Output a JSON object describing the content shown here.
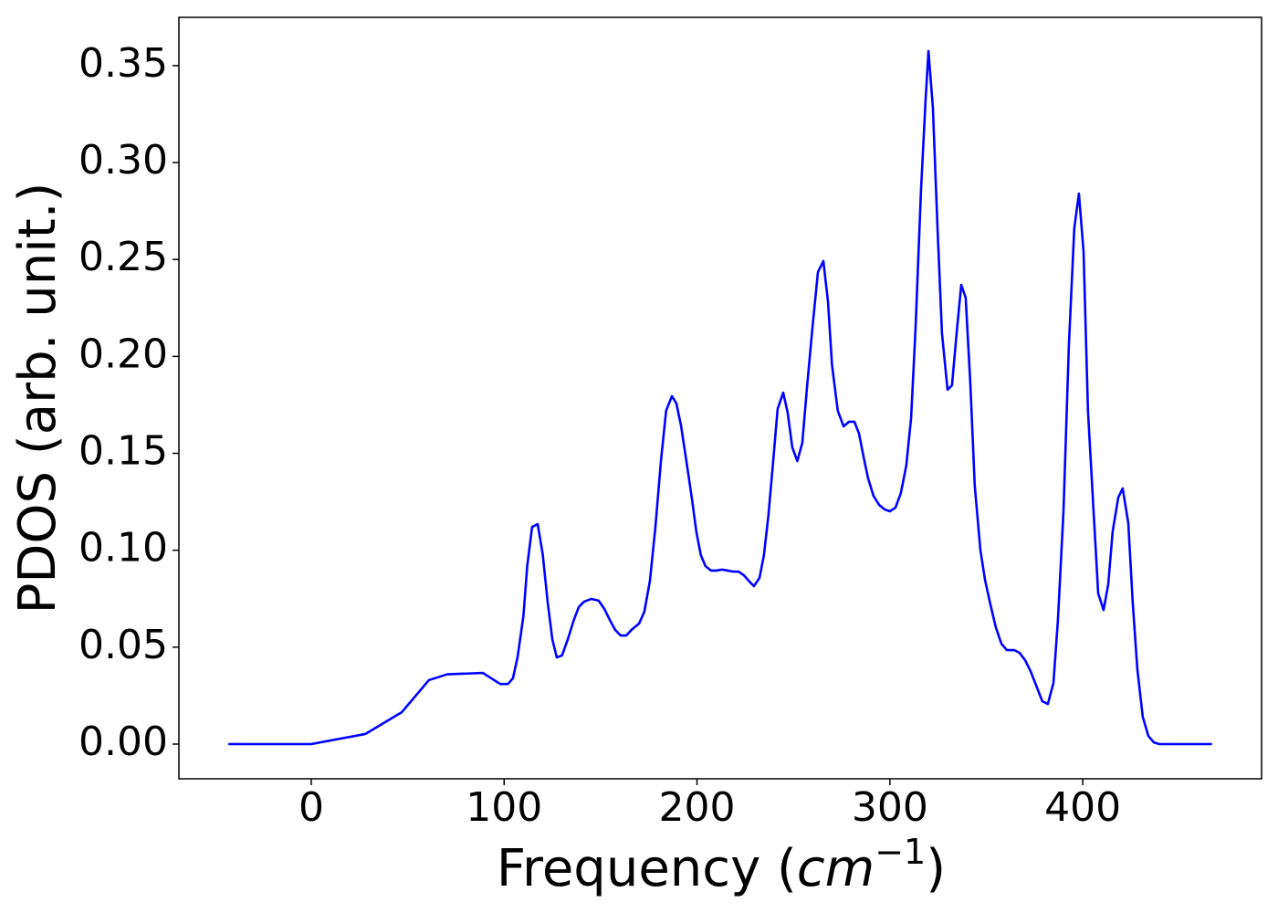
{
  "chart_data": {
    "type": "line",
    "x_label": {
      "text": "Frequency (",
      "unit": "cm",
      "exponent": "−1",
      "close": ")"
    },
    "y_label": "PDOS (arb. unit.)",
    "xlim": [
      -68.6,
      492.7
    ],
    "ylim": [
      -0.0179,
      0.3749
    ],
    "xticks": [
      0,
      100,
      200,
      300,
      400
    ],
    "yticks": [
      {
        "value": 0,
        "label": "0.00"
      },
      {
        "value": 0.05,
        "label": "0.05"
      },
      {
        "value": 0.1,
        "label": "0.10"
      },
      {
        "value": 0.15,
        "label": "0.15"
      },
      {
        "value": 0.2,
        "label": "0.20"
      },
      {
        "value": 0.25,
        "label": "0.25"
      },
      {
        "value": 0.3,
        "label": "0.30"
      },
      {
        "value": 0.35,
        "label": "0.35"
      }
    ],
    "grid": false,
    "x": [
      -43,
      0,
      28,
      47,
      61,
      70.5,
      89,
      98,
      102,
      104.6,
      107,
      110,
      112,
      114.5,
      117.4,
      120,
      122.6,
      125,
      127.3,
      130,
      133,
      136,
      138.7,
      141.5,
      145.3,
      149,
      152,
      155,
      157.6,
      160.4,
      163.3,
      166,
      170,
      172.7,
      175.6,
      178.4,
      181.3,
      184,
      187,
      189.3,
      191.7,
      194.5,
      197.3,
      199.7,
      202,
      204.4,
      207.3,
      210,
      212.9,
      215.8,
      218.6,
      221.5,
      224.3,
      227.2,
      229.5,
      232.4,
      234.7,
      237,
      239.5,
      241.8,
      244.7,
      247,
      249.4,
      252,
      254.6,
      257,
      259.8,
      262.7,
      265.5,
      267.9,
      270,
      273,
      276,
      278.8,
      281.6,
      284,
      286.3,
      288.7,
      291.5,
      294.4,
      297.2,
      300,
      302.9,
      305.7,
      308.5,
      311,
      313.3,
      316.1,
      318.5,
      320,
      322.3,
      324.7,
      327,
      329.9,
      332.2,
      334.6,
      337,
      339.3,
      341.7,
      344,
      346.9,
      349.3,
      352.1,
      354.9,
      357.8,
      360.6,
      364.4,
      367.2,
      370.1,
      372.9,
      375.7,
      379,
      381.9,
      384.8,
      387.1,
      390,
      392.8,
      395.6,
      398,
      400.4,
      402.7,
      405.6,
      408,
      410.8,
      413.2,
      415.5,
      418.4,
      420.7,
      423.6,
      425.9,
      428.3,
      431.1,
      434,
      436.8,
      439.7,
      467
    ],
    "series": [
      {
        "color": "#0000ff",
        "values": [
          0,
          0,
          0.0052,
          0.0165,
          0.033,
          0.036,
          0.0367,
          0.031,
          0.031,
          0.034,
          0.045,
          0.066,
          0.092,
          0.112,
          0.1135,
          0.098,
          0.073,
          0.054,
          0.0447,
          0.0457,
          0.054,
          0.0636,
          0.0707,
          0.0735,
          0.0749,
          0.074,
          0.0697,
          0.0636,
          0.0589,
          0.056,
          0.056,
          0.0589,
          0.0622,
          0.0683,
          0.0843,
          0.1116,
          0.146,
          0.172,
          0.1795,
          0.1757,
          0.1644,
          0.146,
          0.127,
          0.1093,
          0.0975,
          0.0918,
          0.0895,
          0.0895,
          0.09,
          0.0895,
          0.089,
          0.089,
          0.0871,
          0.0838,
          0.0815,
          0.0857,
          0.0975,
          0.1178,
          0.146,
          0.1729,
          0.1813,
          0.171,
          0.1531,
          0.146,
          0.1554,
          0.1837,
          0.2143,
          0.2435,
          0.2492,
          0.2284,
          0.1955,
          0.1719,
          0.1639,
          0.1663,
          0.1663,
          0.1602,
          0.1484,
          0.1371,
          0.1281,
          0.1234,
          0.1211,
          0.1201,
          0.122,
          0.1295,
          0.1437,
          0.1682,
          0.2143,
          0.285,
          0.3321,
          0.3575,
          0.3283,
          0.2661,
          0.212,
          0.1828,
          0.1851,
          0.212,
          0.2369,
          0.2303,
          0.1861,
          0.1333,
          0.1003,
          0.0848,
          0.0721,
          0.0603,
          0.0518,
          0.0485,
          0.0485,
          0.0471,
          0.0433,
          0.0377,
          0.0306,
          0.0221,
          0.0207,
          0.0316,
          0.0636,
          0.1201,
          0.2058,
          0.2661,
          0.284,
          0.2543,
          0.1719,
          0.1201,
          0.0777,
          0.0692,
          0.0824,
          0.1097,
          0.1272,
          0.1319,
          0.114,
          0.073,
          0.0386,
          0.0141,
          0.0042,
          0.0009,
          0,
          0
        ]
      }
    ]
  }
}
